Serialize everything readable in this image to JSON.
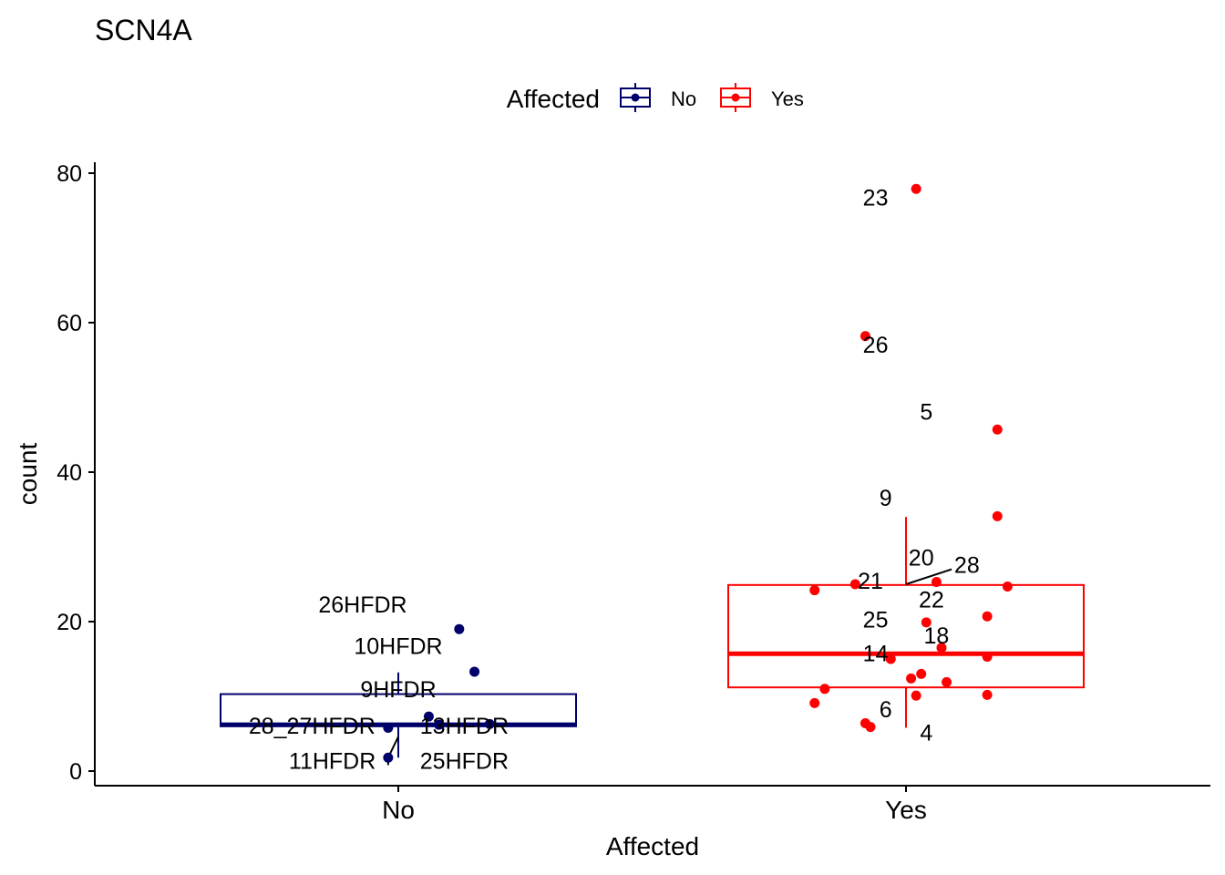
{
  "colors": {
    "No": "#00006B",
    "Yes": "#FF0000",
    "axis": "#000000",
    "background": "#FFFFFF"
  },
  "chart_data": {
    "type": "box",
    "title": "SCN4A",
    "xlabel": "Affected",
    "ylabel": "count",
    "ylim": [
      -2,
      82
    ],
    "yticks": [
      0,
      20,
      40,
      60,
      80
    ],
    "ytick_labels": [
      "0",
      "20",
      "40",
      "60",
      "80"
    ],
    "categories": [
      "No",
      "Yes"
    ],
    "legend": {
      "title": "Affected",
      "position": "top",
      "entries": [
        "No",
        "Yes"
      ]
    },
    "grid": false,
    "boxes": [
      {
        "group": "No",
        "min": 1.8,
        "q1": 6.0,
        "median": 6.2,
        "q3": 10.3,
        "max": 13.2
      },
      {
        "group": "Yes",
        "min": 5.8,
        "q1": 11.2,
        "median": 15.7,
        "q3": 24.9,
        "max": 34.0
      }
    ],
    "series": [
      {
        "name": "No",
        "points": [
          {
            "x": 0.12,
            "y": 19.0
          },
          {
            "x": 0.15,
            "y": 13.3
          },
          {
            "x": 0.06,
            "y": 7.3
          },
          {
            "x": -0.02,
            "y": 5.8
          },
          {
            "x": 0.08,
            "y": 6.2
          },
          {
            "x": 0.18,
            "y": 6.3
          },
          {
            "x": -0.02,
            "y": 1.8
          }
        ]
      },
      {
        "name": "Yes",
        "points": [
          {
            "x": 0.02,
            "y": 77.9
          },
          {
            "x": -0.08,
            "y": 58.2
          },
          {
            "x": 0.18,
            "y": 45.7
          },
          {
            "x": 0.18,
            "y": 34.1
          },
          {
            "x": 0.06,
            "y": 25.3
          },
          {
            "x": -0.1,
            "y": 25.0
          },
          {
            "x": 0.2,
            "y": 24.7
          },
          {
            "x": -0.18,
            "y": 24.2
          },
          {
            "x": 0.04,
            "y": 19.9
          },
          {
            "x": 0.16,
            "y": 20.7
          },
          {
            "x": 0.07,
            "y": 16.5
          },
          {
            "x": -0.03,
            "y": 15.0
          },
          {
            "x": 0.16,
            "y": 15.3
          },
          {
            "x": 0.03,
            "y": 13.0
          },
          {
            "x": 0.01,
            "y": 12.4
          },
          {
            "x": 0.08,
            "y": 11.9
          },
          {
            "x": -0.16,
            "y": 11.0
          },
          {
            "x": -0.18,
            "y": 9.1
          },
          {
            "x": 0.02,
            "y": 10.1
          },
          {
            "x": 0.16,
            "y": 10.2
          },
          {
            "x": -0.08,
            "y": 6.4
          },
          {
            "x": -0.07,
            "y": 5.9
          }
        ]
      }
    ],
    "point_labels": [
      {
        "text": "26HFDR",
        "x": -0.07,
        "y": 21.2
      },
      {
        "text": "10HFDR",
        "x": 0.0,
        "y": 15.7
      },
      {
        "text": "9HFDR",
        "x": 0.0,
        "y": 9.9
      },
      {
        "text": "28_27HFDR",
        "x": -0.17,
        "y": 5.0
      },
      {
        "text": "13HFDR",
        "x": 0.13,
        "y": 5.0
      },
      {
        "text": "11HFDR",
        "x": -0.13,
        "y": 0.3
      },
      {
        "text": "25HFDR",
        "x": 0.13,
        "y": 0.3
      },
      {
        "text": "23",
        "x": -0.06,
        "y": 75.7
      },
      {
        "text": "26",
        "x": -0.06,
        "y": 56.0
      },
      {
        "text": "5",
        "x": 0.04,
        "y": 47.0
      },
      {
        "text": "9",
        "x": -0.04,
        "y": 35.5
      },
      {
        "text": "20",
        "x": 0.03,
        "y": 27.5
      },
      {
        "text": "28",
        "x": 0.12,
        "y": 26.5
      },
      {
        "text": "21",
        "x": -0.07,
        "y": 24.4
      },
      {
        "text": "22",
        "x": 0.05,
        "y": 21.9
      },
      {
        "text": "25",
        "x": -0.06,
        "y": 19.2
      },
      {
        "text": "18",
        "x": 0.06,
        "y": 17.1
      },
      {
        "text": "14",
        "x": -0.06,
        "y": 14.7
      },
      {
        "text": "6",
        "x": -0.04,
        "y": 7.2
      },
      {
        "text": "4",
        "x": 0.04,
        "y": 4.1
      }
    ]
  }
}
